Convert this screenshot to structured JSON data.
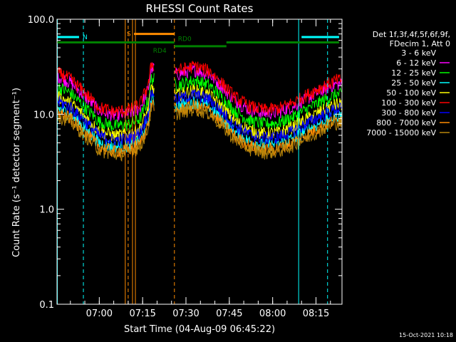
{
  "chart_data": {
    "type": "line",
    "title": "RHESSI Count Rates",
    "xlabel": "Start Time (04-Aug-09 06:45:22)",
    "ylabel": "Count Rate (s⁻¹ detector segment⁻¹)",
    "yscale": "log",
    "ylim": [
      0.1,
      100.0
    ],
    "yticks": [
      "0.1",
      "1.0",
      "10.0",
      "100.0"
    ],
    "xlim": [
      "06:45:22",
      "08:24:00"
    ],
    "xticks": [
      "07:00",
      "07:15",
      "07:30",
      "07:45",
      "08:00",
      "08:15"
    ],
    "legend_position": "right",
    "legend_header": [
      "Det 1f,3f,4f,5f,6f,9f,",
      "FDecim 1, Att 0"
    ],
    "series": [
      {
        "name": "3 - 6 keV",
        "color": "#000000",
        "scale": 0.78
      },
      {
        "name": "6 - 12 keV",
        "color": "#ff00ff",
        "scale": 1.55
      },
      {
        "name": "12 - 25 keV",
        "color": "#00ff00",
        "scale": 1.2
      },
      {
        "name": "25 - 50 keV",
        "color": "#00ffff",
        "scale": 0.72
      },
      {
        "name": "50 - 100 keV",
        "color": "#ffff00",
        "scale": 0.95
      },
      {
        "name": "100 - 300 keV",
        "color": "#ff0000",
        "scale": 1.7
      },
      {
        "name": "300 - 800 keV",
        "color": "#0000ff",
        "scale": 0.85
      },
      {
        "name": "800 - 7000 keV",
        "color": "#ff8c00",
        "scale": 0.65
      },
      {
        "name": "7000 - 15000 keV",
        "color": "#b8860b",
        "scale": 0.6
      }
    ],
    "profile_points": [
      [
        "06:46",
        16
      ],
      [
        "06:50",
        14
      ],
      [
        "06:55",
        10
      ],
      [
        "07:00",
        7
      ],
      [
        "07:05",
        6.3
      ],
      [
        "07:10",
        6.5
      ],
      [
        "07:14",
        7.5
      ],
      [
        "07:17",
        12
      ],
      [
        "07:18",
        20
      ],
      [
        "07:27",
        17
      ],
      [
        "07:33",
        19
      ],
      [
        "07:38",
        17
      ],
      [
        "07:42",
        13
      ],
      [
        "07:47",
        9
      ],
      [
        "07:52",
        7.2
      ],
      [
        "07:57",
        6.6
      ],
      [
        "08:02",
        6.8
      ],
      [
        "08:07",
        7.8
      ],
      [
        "08:12",
        9.5
      ],
      [
        "08:17",
        11.5
      ],
      [
        "08:22",
        13.5
      ]
    ],
    "data_gaps": [
      [
        "07:19",
        "07:26"
      ]
    ],
    "flags": {
      "top_segments": [
        {
          "label": "N",
          "color": "#00ffff",
          "value": 65,
          "ranges": [
            [
              "06:45:22",
              "06:53"
            ],
            [
              "08:10",
              "08:23"
            ]
          ]
        },
        {
          "label": "S",
          "color": "#ff8c00",
          "value": 70,
          "ranges": [
            [
              "07:12",
              "07:26"
            ]
          ]
        },
        {
          "label": "RD0",
          "color": "#008000",
          "value": 57,
          "ranges": [
            [
              "06:45:22",
              "07:26"
            ],
            [
              "07:44",
              "08:23"
            ]
          ]
        },
        {
          "label": "RD4",
          "color": "#008000",
          "value": 52,
          "ranges": [
            [
              "07:26",
              "07:44"
            ]
          ]
        }
      ],
      "vlines": [
        {
          "time": "06:45:30",
          "color": "#00ffff",
          "style": "solid"
        },
        {
          "time": "06:54:30",
          "color": "#00ffff",
          "style": "dashed"
        },
        {
          "time": "07:09",
          "color": "#ff8c00",
          "style": "solid"
        },
        {
          "time": "07:10",
          "color": "#ff8c00",
          "style": "dashed"
        },
        {
          "time": "07:11.5",
          "color": "#ff8c00",
          "style": "solid"
        },
        {
          "time": "07:12.5",
          "color": "#ff8c00",
          "style": "solid"
        },
        {
          "time": "07:26",
          "color": "#ff8c00",
          "style": "dashed"
        },
        {
          "time": "08:09",
          "color": "#00ffff",
          "style": "solid"
        },
        {
          "time": "08:19",
          "color": "#00ffff",
          "style": "dashed"
        }
      ]
    },
    "timestamp": "15-Oct-2021 10:18"
  }
}
